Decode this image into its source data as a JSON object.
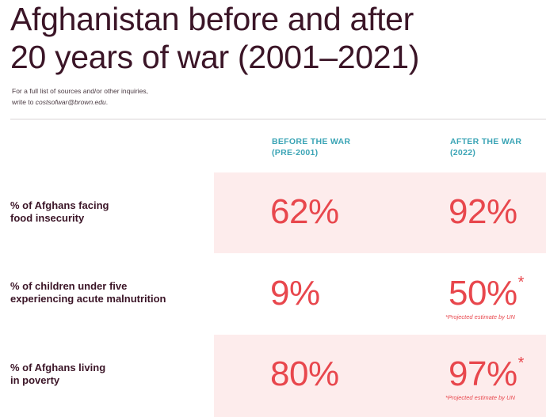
{
  "title": {
    "line1": "Afghanistan before and after",
    "line2": "20 years of war (2001–2021)"
  },
  "source": {
    "line1": "For a full list of sources and/or other inquiries,",
    "line2_prefix": "write to ",
    "email": "costsofwar@brown.edu",
    "line2_suffix": "."
  },
  "columns": {
    "before": {
      "line1": "BEFORE THE WAR",
      "line2": "(PRE-2001)"
    },
    "after": {
      "line1": "AFTER THE WAR",
      "line2": "(2022)"
    }
  },
  "rows": [
    {
      "label_line1": "% of Afghans facing",
      "label_line2": "food insecurity",
      "before": "62%",
      "after": "92%"
    },
    {
      "label_line1": "% of children under five",
      "label_line2": "experiencing acute malnutrition",
      "before": "9%",
      "after": "50%",
      "star": "*",
      "note": "*Projected estimate by UN"
    },
    {
      "label_line1": "% of Afghans living",
      "label_line2": "in poverty",
      "before": "80%",
      "after": "97%",
      "star": "*",
      "note": "*Projected estimate by UN"
    }
  ],
  "colors": {
    "accent": "#e8474d",
    "header": "#3aa4b5",
    "title": "#3b1527",
    "shade": "#fdecec"
  }
}
